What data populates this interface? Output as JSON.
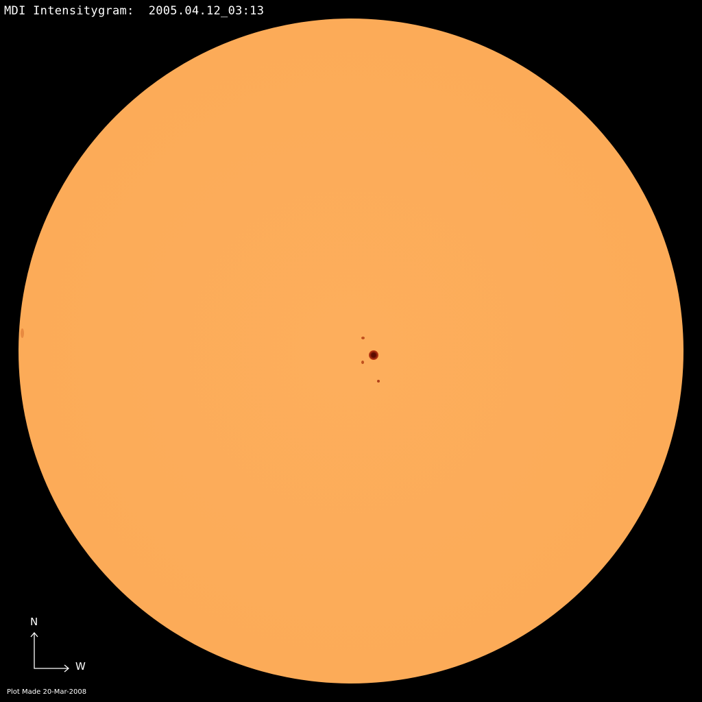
{
  "title": "MDI Intensitygram:  2005.04.12_03:13",
  "compass": {
    "north": "N",
    "west": "W"
  },
  "footer": "Plot Made 20-Mar-2008",
  "colors": {
    "background": "#000000",
    "disk": "#fcab58",
    "sunspot": "#8a1a00",
    "text": "#ffffff"
  }
}
